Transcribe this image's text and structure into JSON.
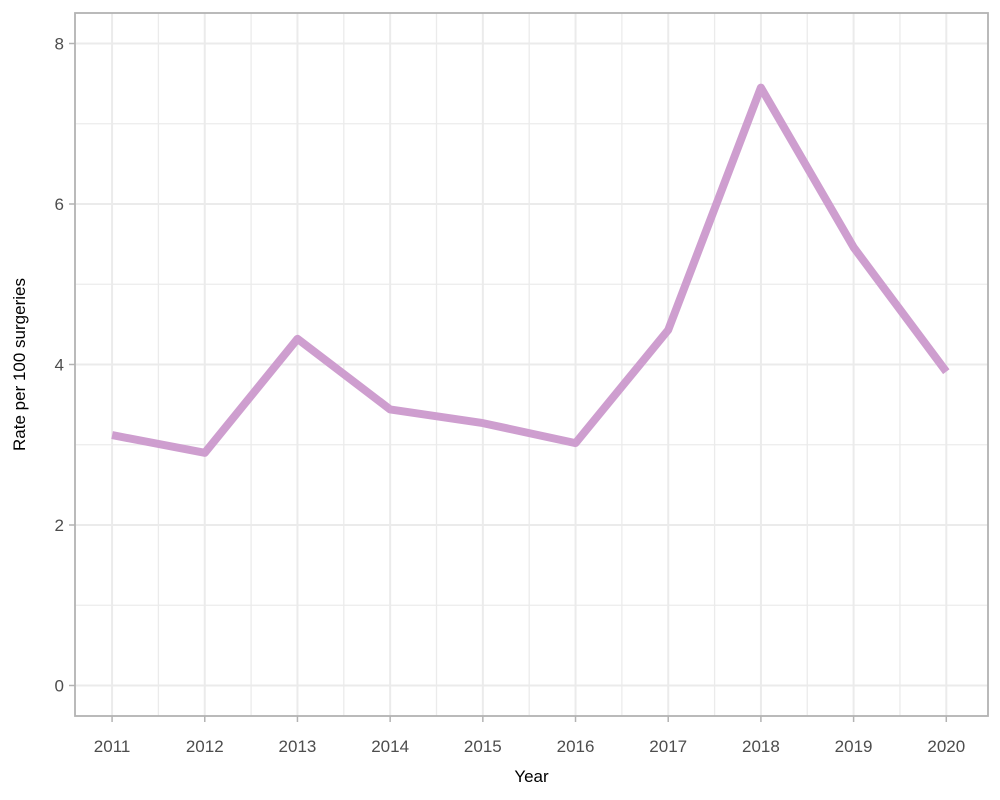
{
  "chart_data": {
    "type": "line",
    "title": "",
    "xlabel": "Year",
    "ylabel": "Rate per 100 surgeries",
    "x": [
      2011,
      2012,
      2013,
      2014,
      2015,
      2016,
      2017,
      2018,
      2019,
      2020
    ],
    "xlim": [
      2010.6,
      2020.45
    ],
    "ylim": [
      -0.38,
      8.38
    ],
    "y_ticks": [
      0,
      2,
      4,
      6,
      8
    ],
    "y_minor_ticks": [
      1,
      3,
      5,
      7
    ],
    "x_minor_ticks": [
      2011.5,
      2012.5,
      2013.5,
      2014.5,
      2015.5,
      2016.5,
      2017.5,
      2018.5,
      2019.5
    ],
    "grid": true,
    "legend": "none",
    "series": [
      {
        "values": [
          3.12,
          2.9,
          4.32,
          3.44,
          3.27,
          3.02,
          4.43,
          7.45,
          5.46,
          3.91
        ],
        "color": "#CE9ECF"
      }
    ]
  },
  "colors": {
    "panel_border": "#b3b3b3",
    "grid": "#ebebeb",
    "tick_mark": "#b3b3b3",
    "tick_text": "#4d4d4d"
  }
}
